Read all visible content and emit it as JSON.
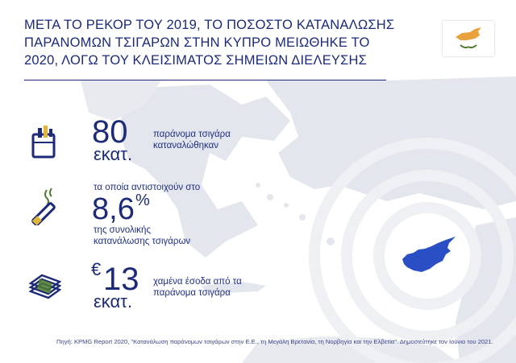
{
  "title": "ΜΕΤΑ ΤΟ ΡΕΚΟΡ ΤΟΥ 2019, ΤΟ ΠΟΣΟΣΤΟ ΚΑΤΑΝΑΛΩΣΗΣ ΠΑΡΑΝΟΜΩΝ ΤΣΙΓΑΡΩΝ ΣΤΗΝ ΚΥΠΡΟ ΜΕΙΩΘΗΚΕ ΤΟ 2020, ΛΟΓΩ ΤΟΥ ΚΛΕΙΣΙΜΑΤΟΣ ΣΗΜΕΙΩΝ ΔΙΕΛΕΥΣΗΣ",
  "colors": {
    "primary": "#1c2a78",
    "island": "#2a4fc4",
    "flag_copper": "#e9a23b",
    "flag_olive": "#4d7a2e"
  },
  "stats": [
    {
      "icon": "cigarette-pack-icon",
      "number": "80",
      "unit": "εκατ.",
      "desc_line1": "παράνομα τσιγάρα",
      "desc_line2": "καταναλώθηκαν"
    },
    {
      "icon": "lit-cigarette-icon",
      "pre": "τα οποία αντιστοιχούν στο",
      "number": "8,6",
      "unit": "%",
      "desc_line1": "της συνολικής",
      "desc_line2": "κατανάλωσης τσιγάρων"
    },
    {
      "icon": "money-stack-icon",
      "currency": "€",
      "number": "13",
      "unit": "εκατ.",
      "desc_line1": "χαμένα έσοδα από τα",
      "desc_line2": "παράνομα τσιγάρα"
    }
  ],
  "source": "Πηγή: KPMG Report 2020, \"Κατανάλωση παράνομων τσιγάρων στην Ε.Ε., τη Μεγάλη Βρετανία, τη Νορβηγία και την Ελβετία\". Δημοσιεύτηκε τον Ιούνιο του 2021."
}
